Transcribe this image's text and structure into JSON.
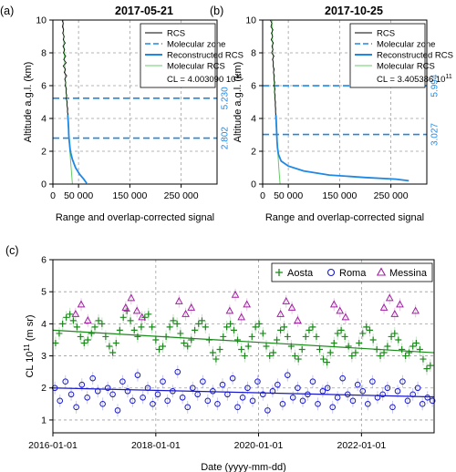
{
  "colors": {
    "rcs": "#000000",
    "molecular_zone": "#1e88e5",
    "reconstructed_rcs": "#1e88e5",
    "molecular_rcs": "#66cc66",
    "aosta": "#1b8a1b",
    "roma": "#1a1acc",
    "messina": "#a020a0",
    "grid": "#9e9e9e",
    "value_labels": "#1e88e5"
  },
  "chart_data": [
    {
      "type": "line",
      "panel_label": "(a)",
      "title": "2017-05-21",
      "xlabel": "Range and overlap-corrected signal",
      "ylabel": "Altitude a.g.l. (km)",
      "xlim": [
        0,
        320000
      ],
      "ylim": [
        0,
        10
      ],
      "x_ticks": [
        0,
        50000,
        150000,
        250000
      ],
      "x_tick_labels": [
        "0",
        "50 000",
        "150 000",
        "250 000"
      ],
      "y_ticks": [
        0,
        2,
        4,
        6,
        8,
        10
      ],
      "grid": true,
      "legend_position": "top-right",
      "legend": [
        "RCS",
        "Molecular zone",
        "Reconstructed RCS",
        "Molecular RCS"
      ],
      "legend_note_prefix": "CL = 4.003090 10",
      "legend_note_exponent": "11",
      "molecular_zone": {
        "values": [
          2.802,
          5.23
        ],
        "labels": [
          "2.802",
          "5.230"
        ]
      },
      "series": [
        {
          "name": "RCS",
          "x": [
            18000,
            20000,
            18500,
            21000,
            19000,
            22000,
            20000,
            24000,
            19500,
            23000,
            20500,
            25000,
            21000,
            26000,
            20000,
            24500,
            22000,
            27000,
            23000,
            25000,
            24000,
            26500,
            25500,
            27000,
            26000,
            28000,
            27500,
            29000,
            28500,
            30000
          ],
          "y": [
            10.0,
            9.8,
            9.6,
            9.4,
            9.2,
            9.0,
            8.8,
            8.6,
            8.4,
            8.2,
            8.0,
            7.8,
            7.6,
            7.4,
            7.2,
            7.0,
            6.8,
            6.6,
            6.4,
            6.2,
            6.0,
            5.8,
            5.6,
            5.4,
            5.2,
            5.0,
            4.8,
            4.6,
            4.4,
            4.2
          ]
        },
        {
          "name": "Reconstructed RCS",
          "x": [
            29000,
            29800,
            30500,
            31000,
            32000,
            34000,
            38000,
            44000,
            52000,
            60000,
            66000
          ],
          "y": [
            4.2,
            3.8,
            3.4,
            3.0,
            2.6,
            2.0,
            1.5,
            1.0,
            0.6,
            0.3,
            0.05
          ]
        },
        {
          "name": "Molecular RCS",
          "x": [
            20000,
            21000,
            22000,
            23500,
            25000,
            27000,
            29000,
            31000,
            33000,
            35500,
            38000
          ],
          "y": [
            10.0,
            9.0,
            8.0,
            7.0,
            6.0,
            5.0,
            4.0,
            3.0,
            2.0,
            1.0,
            0.0
          ]
        }
      ]
    },
    {
      "type": "line",
      "panel_label": "(b)",
      "title": "2017-10-25",
      "xlabel": "Range and overlap-corrected signal",
      "ylabel": "Altitude a.g.l. (km)",
      "xlim": [
        0,
        320000
      ],
      "ylim": [
        0,
        10
      ],
      "x_ticks": [
        0,
        50000,
        150000,
        250000
      ],
      "x_tick_labels": [
        "0",
        "50 000",
        "150 000",
        "250 000"
      ],
      "y_ticks": [
        0,
        2,
        4,
        6,
        8,
        10
      ],
      "grid": true,
      "legend_position": "top-right",
      "legend": [
        "RCS",
        "Molecular zone",
        "Reconstructed RCS",
        "Molecular RCS"
      ],
      "legend_note_prefix": "CL = 3.405386 10",
      "legend_note_exponent": "11",
      "molecular_zone": {
        "values": [
          3.027,
          5.994
        ],
        "labels": [
          "3.027",
          "5.994"
        ]
      },
      "series": [
        {
          "name": "RCS",
          "x": [
            15000,
            18000,
            16000,
            20000,
            17000,
            19500,
            16500,
            21000,
            18000,
            20000,
            17500,
            22000,
            19000,
            21000,
            20000,
            22500,
            21000,
            23000,
            22000,
            23500,
            22500,
            24000,
            23000,
            24500,
            24000,
            25000,
            24800,
            25500,
            25200,
            26000
          ],
          "y": [
            10.0,
            9.8,
            9.6,
            9.4,
            9.2,
            9.0,
            8.8,
            8.6,
            8.4,
            8.2,
            8.0,
            7.8,
            7.6,
            7.4,
            7.2,
            7.0,
            6.8,
            6.6,
            6.4,
            6.2,
            6.0,
            5.8,
            5.6,
            5.4,
            5.2,
            5.0,
            4.8,
            4.6,
            4.4,
            4.2
          ]
        },
        {
          "name": "Reconstructed RCS",
          "x": [
            26000,
            26500,
            27000,
            27500,
            28000,
            29000,
            31000,
            36000,
            50000,
            80000,
            130000,
            200000,
            260000,
            285000
          ],
          "y": [
            4.2,
            3.8,
            3.4,
            3.0,
            2.6,
            2.2,
            1.8,
            1.4,
            1.1,
            0.8,
            0.55,
            0.4,
            0.3,
            0.2
          ]
        },
        {
          "name": "Molecular RCS",
          "x": [
            18000,
            19000,
            20000,
            21000,
            22500,
            24000,
            25500,
            27500,
            29500,
            31500,
            34000
          ],
          "y": [
            10.0,
            9.0,
            8.0,
            7.0,
            6.0,
            5.0,
            4.0,
            3.0,
            2.0,
            1.0,
            0.0
          ]
        }
      ]
    },
    {
      "type": "scatter",
      "panel_label": "(c)",
      "xlabel": "Date (yyyy-mm-dd)",
      "ylabel_prefix": "CL 10",
      "ylabel_exponent": "11",
      "ylabel_suffix": " (m sr)",
      "xlim": [
        "2016-01-01",
        "2023-06-01"
      ],
      "ylim": [
        0.6,
        6.0
      ],
      "x_ticks": [
        "2016-01-01",
        "2018-01-01",
        "2020-01-01",
        "2022-01-01"
      ],
      "y_ticks": [
        1,
        2,
        3,
        4,
        5,
        6
      ],
      "grid": true,
      "legend_position": "top-right",
      "series": [
        {
          "name": "Aosta",
          "marker": "plus",
          "x": [
            "2016-01-20",
            "2016-02-15",
            "2016-03-10",
            "2016-04-05",
            "2016-05-01",
            "2016-05-25",
            "2016-06-20",
            "2016-07-15",
            "2016-08-10",
            "2016-09-05",
            "2016-10-01",
            "2016-10-25",
            "2016-11-20",
            "2016-12-15",
            "2017-01-10",
            "2017-02-05",
            "2017-03-01",
            "2017-03-25",
            "2017-04-20",
            "2017-05-15",
            "2017-06-10",
            "2017-07-05",
            "2017-08-01",
            "2017-08-25",
            "2017-09-20",
            "2017-10-15",
            "2017-11-10",
            "2017-12-05",
            "2018-01-01",
            "2018-01-25",
            "2018-02-20",
            "2018-03-15",
            "2018-04-10",
            "2018-05-05",
            "2018-06-01",
            "2018-06-25",
            "2018-07-20",
            "2018-08-15",
            "2018-09-10",
            "2018-10-05",
            "2018-11-01",
            "2018-11-25",
            "2018-12-20",
            "2019-01-15",
            "2019-02-10",
            "2019-03-05",
            "2019-04-01",
            "2019-04-25",
            "2019-05-20",
            "2019-06-15",
            "2019-07-10",
            "2019-08-05",
            "2019-09-01",
            "2019-09-25",
            "2019-10-20",
            "2019-11-15",
            "2019-12-10",
            "2020-01-05",
            "2020-02-01",
            "2020-02-25",
            "2020-03-20",
            "2020-04-15",
            "2020-05-10",
            "2020-06-05",
            "2020-07-01",
            "2020-07-25",
            "2020-08-20",
            "2020-09-15",
            "2020-10-10",
            "2020-11-05",
            "2020-12-01",
            "2020-12-25",
            "2021-01-20",
            "2021-02-15",
            "2021-03-10",
            "2021-04-05",
            "2021-05-01",
            "2021-05-25",
            "2021-06-20",
            "2021-07-15",
            "2021-08-10",
            "2021-09-05",
            "2021-10-01",
            "2021-10-25",
            "2021-11-20",
            "2021-12-15",
            "2022-01-10",
            "2022-02-05",
            "2022-03-01",
            "2022-03-25",
            "2022-04-20",
            "2022-05-15",
            "2022-06-10",
            "2022-07-05",
            "2022-08-01",
            "2022-08-25",
            "2022-09-20",
            "2022-10-15",
            "2022-11-10",
            "2022-12-05",
            "2023-01-01",
            "2023-01-25",
            "2023-02-20",
            "2023-03-15",
            "2023-04-10",
            "2023-05-05"
          ],
          "y": [
            3.4,
            3.7,
            4.0,
            4.2,
            4.3,
            4.1,
            3.9,
            3.6,
            3.4,
            3.5,
            3.7,
            3.9,
            4.1,
            4.0,
            3.6,
            3.3,
            3.1,
            3.4,
            3.8,
            4.2,
            4.4,
            4.1,
            3.8,
            3.6,
            3.9,
            4.2,
            4.3,
            3.9,
            3.5,
            3.2,
            3.3,
            3.6,
            3.9,
            4.1,
            4.0,
            3.7,
            3.4,
            3.3,
            3.5,
            3.8,
            4.0,
            4.1,
            3.9,
            3.5,
            3.1,
            2.9,
            3.2,
            3.6,
            3.9,
            4.0,
            3.8,
            3.5,
            3.2,
            3.0,
            3.3,
            3.6,
            3.9,
            4.0,
            3.7,
            3.3,
            3.0,
            3.1,
            3.5,
            3.8,
            3.9,
            3.6,
            3.3,
            3.0,
            2.9,
            3.2,
            3.6,
            3.8,
            3.9,
            3.6,
            3.2,
            2.9,
            2.8,
            3.1,
            3.4,
            3.7,
            3.8,
            3.6,
            3.3,
            3.0,
            3.1,
            3.4,
            3.7,
            3.9,
            3.8,
            3.5,
            3.2,
            3.0,
            3.1,
            3.3,
            3.6,
            3.7,
            3.5,
            3.2,
            3.0,
            3.1,
            3.3,
            3.4,
            3.2,
            2.9,
            2.6,
            2.7
          ],
          "trend": {
            "x": [
              "2016-01-01",
              "2023-06-01"
            ],
            "y": [
              3.8,
              3.1
            ]
          }
        },
        {
          "name": "Roma",
          "marker": "circle",
          "x": [
            "2016-01-15",
            "2016-02-20",
            "2016-03-30",
            "2016-05-10",
            "2016-06-15",
            "2016-07-25",
            "2016-09-01",
            "2016-10-10",
            "2016-11-15",
            "2016-12-20",
            "2017-01-25",
            "2017-03-01",
            "2017-04-05",
            "2017-05-10",
            "2017-06-15",
            "2017-07-20",
            "2017-08-25",
            "2017-10-01",
            "2017-11-05",
            "2017-12-10",
            "2018-01-15",
            "2018-02-20",
            "2018-03-25",
            "2018-05-01",
            "2018-06-05",
            "2018-07-10",
            "2018-08-15",
            "2018-09-20",
            "2018-10-25",
            "2018-12-01",
            "2019-01-05",
            "2019-02-10",
            "2019-03-15",
            "2019-04-20",
            "2019-05-25",
            "2019-07-01",
            "2019-08-05",
            "2019-09-10",
            "2019-10-15",
            "2019-11-20",
            "2019-12-25",
            "2020-02-01",
            "2020-03-05",
            "2020-04-10",
            "2020-05-15",
            "2020-06-20",
            "2020-07-25",
            "2020-09-01",
            "2020-10-05",
            "2020-11-10",
            "2020-12-15",
            "2021-01-20",
            "2021-02-25",
            "2021-04-01",
            "2021-05-05",
            "2021-06-10",
            "2021-07-15",
            "2021-08-20",
            "2021-09-25",
            "2021-11-01",
            "2021-12-05",
            "2022-01-10",
            "2022-02-15",
            "2022-03-20",
            "2022-04-25",
            "2022-06-01",
            "2022-07-05",
            "2022-08-10",
            "2022-09-15",
            "2022-10-20",
            "2022-11-25",
            "2023-01-01",
            "2023-02-05",
            "2023-03-10",
            "2023-04-15",
            "2023-05-20"
          ],
          "y": [
            2.0,
            1.6,
            2.2,
            1.8,
            1.4,
            2.1,
            1.7,
            2.3,
            1.9,
            1.5,
            2.0,
            1.8,
            1.3,
            2.2,
            1.9,
            1.6,
            2.4,
            1.7,
            2.0,
            1.5,
            1.8,
            2.2,
            1.6,
            1.9,
            2.5,
            1.7,
            1.4,
            2.0,
            1.8,
            2.2,
            1.6,
            1.9,
            1.5,
            2.1,
            1.8,
            2.3,
            1.4,
            1.7,
            2.0,
            1.6,
            2.2,
            1.8,
            1.3,
            1.9,
            2.1,
            1.5,
            2.4,
            1.7,
            2.0,
            1.6,
            1.8,
            2.2,
            1.5,
            1.9,
            2.0,
            1.4,
            1.7,
            2.3,
            1.8,
            1.6,
            2.1,
            1.9,
            1.5,
            2.2,
            1.7,
            1.8,
            2.0,
            1.4,
            1.9,
            2.2,
            1.6,
            1.8,
            2.0,
            1.5,
            1.7,
            1.6
          ],
          "trend": {
            "x": [
              "2016-01-01",
              "2023-06-01"
            ],
            "y": [
              2.0,
              1.72
            ]
          }
        },
        {
          "name": "Messina",
          "marker": "triangle",
          "x": [
            "2016-06-10",
            "2016-07-20",
            "2016-09-05",
            "2017-06-01",
            "2017-07-10",
            "2017-08-20",
            "2017-09-25",
            "2018-06-15",
            "2018-08-01",
            "2018-09-10",
            "2019-06-10",
            "2019-07-20",
            "2019-09-01",
            "2019-10-10",
            "2020-06-05",
            "2020-07-15",
            "2020-08-25",
            "2020-10-05",
            "2021-06-20",
            "2021-08-01",
            "2021-09-10",
            "2022-06-10",
            "2022-07-20",
            "2022-08-25",
            "2022-10-01",
            "2023-01-20"
          ],
          "y": [
            4.3,
            4.6,
            4.1,
            4.5,
            4.8,
            4.4,
            4.2,
            4.7,
            4.3,
            4.5,
            4.4,
            4.9,
            4.2,
            4.6,
            4.3,
            4.7,
            4.5,
            4.1,
            4.6,
            4.4,
            4.2,
            4.5,
            4.8,
            4.3,
            4.6,
            4.4
          ]
        }
      ]
    }
  ]
}
